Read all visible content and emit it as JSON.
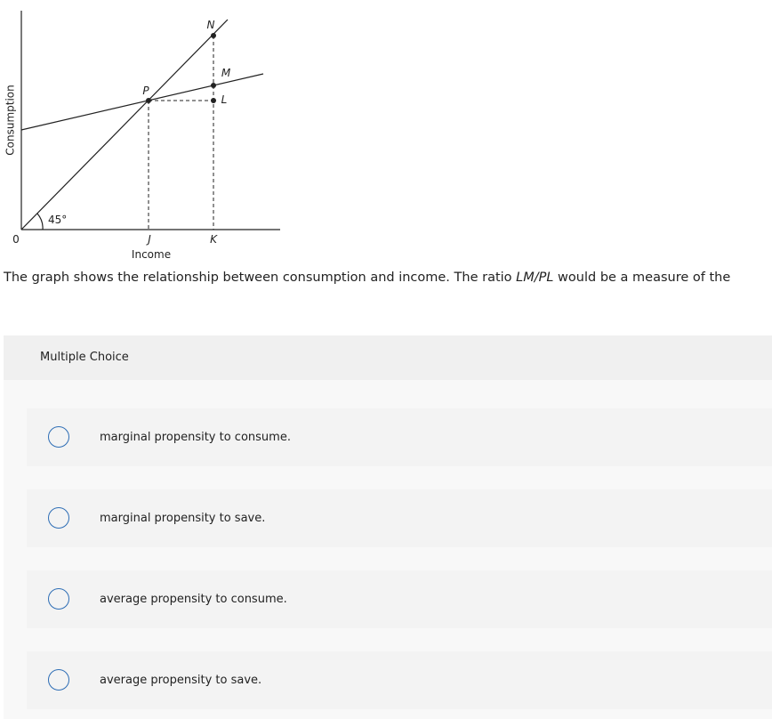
{
  "figure": {
    "y_axis_label": "Consumption",
    "x_axis_label": "Income",
    "origin_label": "0",
    "angle_label": "45°",
    "point_labels": {
      "N": "N",
      "M": "M",
      "P": "P",
      "L": "L",
      "J": "J",
      "K": "K"
    }
  },
  "question": {
    "text_before": "The graph shows the relationship between consumption and income. The ratio ",
    "ratio": "LM/PL",
    "text_after": " would be a measure of the"
  },
  "choices": {
    "header": "Multiple Choice",
    "options": [
      "marginal propensity to consume.",
      "marginal propensity to save.",
      "average propensity to consume.",
      "average propensity to save."
    ]
  }
}
